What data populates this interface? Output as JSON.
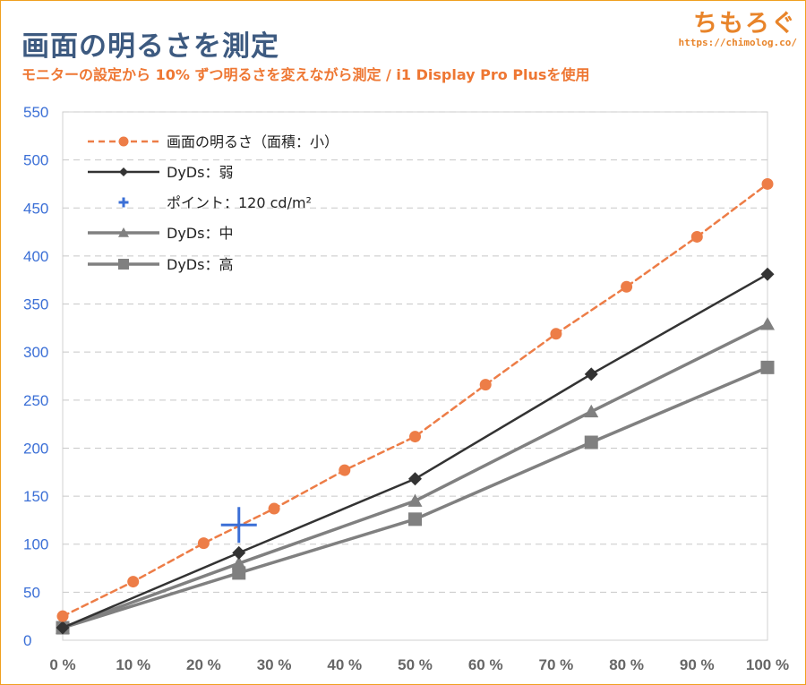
{
  "header": {
    "title": "画面の明るさを測定",
    "subtitle": "モニターの設定から 10% ずつ明るさを変えながら測定 / i1 Display Pro Plusを使用"
  },
  "logo": {
    "name": "ちもろぐ",
    "url": "https://chimolog.co/"
  },
  "chart_data": {
    "type": "line",
    "xlim": [
      0,
      100
    ],
    "ylim": [
      0,
      550
    ],
    "x_ticks": [
      "0 %",
      "10 %",
      "20 %",
      "30 %",
      "40 %",
      "50 %",
      "60 %",
      "70 %",
      "80 %",
      "90 %",
      "100 %"
    ],
    "y_ticks": [
      0,
      50,
      100,
      150,
      200,
      250,
      300,
      350,
      400,
      450,
      500,
      550
    ],
    "grid": true,
    "legend_position": "top-left",
    "series": [
      {
        "name": "画面の明るさ（面積：小）",
        "style": "dashed",
        "marker": "circle",
        "color": "#ed7d47",
        "points": [
          [
            0,
            25
          ],
          [
            10,
            61
          ],
          [
            20,
            101
          ],
          [
            30,
            137
          ],
          [
            40,
            177
          ],
          [
            50,
            212
          ],
          [
            60,
            266
          ],
          [
            70,
            319
          ],
          [
            80,
            368
          ],
          [
            90,
            420
          ],
          [
            100,
            475
          ]
        ]
      },
      {
        "name": "DyDs：弱",
        "style": "solid",
        "marker": "diamond",
        "color": "#333333",
        "points": [
          [
            0,
            13
          ],
          [
            25,
            91
          ],
          [
            50,
            168
          ],
          [
            75,
            277
          ],
          [
            100,
            381
          ]
        ]
      },
      {
        "name": "ポイント：120 cd/m²",
        "style": "none",
        "marker": "cross",
        "color": "#3b6fd6",
        "points": [
          [
            25,
            120
          ]
        ]
      },
      {
        "name": "DyDs：中",
        "style": "solid",
        "marker": "triangle",
        "color": "#808080",
        "points": [
          [
            0,
            13
          ],
          [
            25,
            80
          ],
          [
            50,
            145
          ],
          [
            75,
            238
          ],
          [
            100,
            329
          ]
        ]
      },
      {
        "name": "DyDs：高",
        "style": "solid",
        "marker": "square",
        "color": "#808080",
        "points": [
          [
            0,
            13
          ],
          [
            25,
            70
          ],
          [
            50,
            126
          ],
          [
            75,
            206
          ],
          [
            100,
            284
          ]
        ]
      }
    ]
  }
}
